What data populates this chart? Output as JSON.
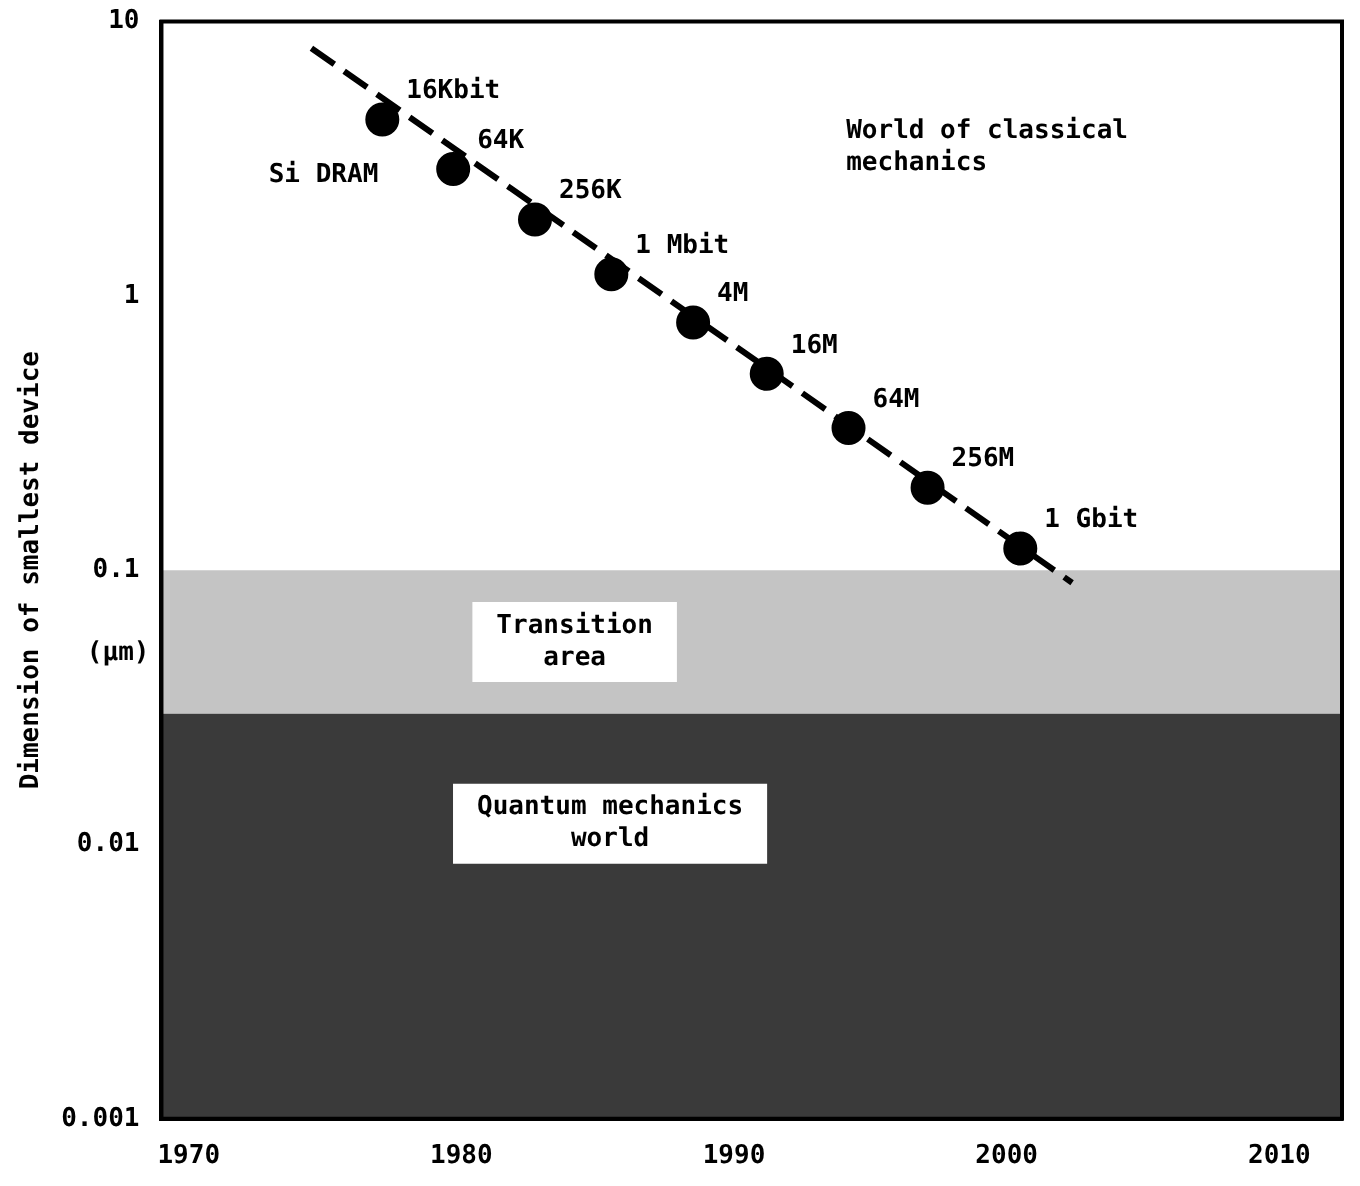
{
  "chart_data": {
    "type": "scatter",
    "ylabel": "Dimension of smallest device",
    "xlim": [
      1969,
      2012.3
    ],
    "xticks": [
      1970,
      1980,
      1990,
      2000,
      2010
    ],
    "ylim": [
      0.001,
      10
    ],
    "yticks": [
      0.001,
      0.01,
      0.1,
      1,
      10
    ],
    "log": "y",
    "grid": false,
    "legend": false,
    "series": [
      {
        "name": "Si DRAM",
        "marker": "circle",
        "color": "#000000",
        "x": [
          1977.1,
          1979.7,
          1982.7,
          1985.5,
          1988.5,
          1991.2,
          1994.2,
          1997.1,
          2000.5
        ],
        "values": [
          4.4,
          2.9,
          1.9,
          1.2,
          0.8,
          0.52,
          0.33,
          0.2,
          0.12
        ]
      },
      {
        "type": "line",
        "marker": "none",
        "line_style": "dashed",
        "color": "#000000",
        "x": [
          1974.5,
          2002.4
        ],
        "values": [
          8,
          0.09
        ]
      }
    ],
    "bands": [
      {
        "axis": "y",
        "from": 0.03,
        "to": 0.1,
        "label": "Transition area",
        "color": "#c4c4c4"
      },
      {
        "axis": "y",
        "from": 0.001,
        "to": 0.03,
        "label": "Quantum mechanics world",
        "color": "#3a3a3a"
      }
    ],
    "annotations": [
      "World of classical mechanics",
      "(μm)",
      {
        "text": "16Kbit",
        "x": 1977.1,
        "y": 4.4
      },
      {
        "text": "64K",
        "x": 1979.7,
        "y": 2.9
      },
      {
        "text": "256K",
        "x": 1982.7,
        "y": 1.9
      },
      {
        "text": "1 Mbit",
        "x": 1985.5,
        "y": 1.2
      },
      {
        "text": "4M",
        "x": 1988.5,
        "y": 0.8
      },
      {
        "text": "16M",
        "x": 1991.2,
        "y": 0.52
      },
      {
        "text": "64M",
        "x": 1994.2,
        "y": 0.33
      },
      {
        "text": "256M",
        "x": 1997.1,
        "y": 0.2
      },
      {
        "text": "1 Gbit",
        "x": 2000.5,
        "y": 0.12
      }
    ]
  }
}
